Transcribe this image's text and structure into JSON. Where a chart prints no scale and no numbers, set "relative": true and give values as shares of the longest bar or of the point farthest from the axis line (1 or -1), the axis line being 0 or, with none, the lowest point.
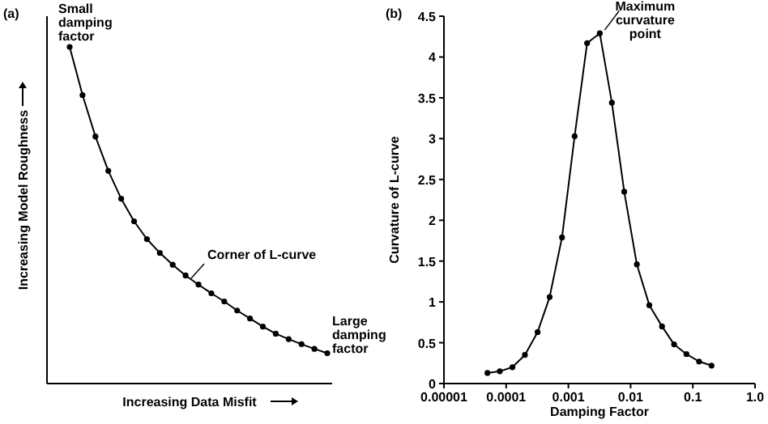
{
  "chart_data": [
    {
      "type": "line",
      "title": "(a)",
      "xlabel": "Increasing Data Misfit",
      "ylabel": "Increasing Model Roughness",
      "relative": true,
      "marker": "circle",
      "line_style": "solid",
      "grid": false,
      "categories": [
        null,
        null,
        null,
        null,
        null,
        null,
        null,
        null,
        null,
        null,
        null,
        null,
        null,
        null,
        null,
        null,
        null,
        null,
        null,
        null,
        null
      ],
      "series": [
        {
          "color": "#000000",
          "values": [
            1,
            0.857,
            0.734,
            0.632,
            0.549,
            0.482,
            0.429,
            0.388,
            0.353,
            0.321,
            0.294,
            0.268,
            0.244,
            0.217,
            0.193,
            0.169,
            0.148,
            0.132,
            0.117,
            0.103,
            0.09
          ]
        }
      ],
      "annotations": [
        "Small\ndamping\nfactor",
        "Corner of L-curve",
        "Large\ndamping\nfactor"
      ]
    },
    {
      "type": "line",
      "title": "(b)",
      "xlabel": "Damping Factor",
      "ylabel": "Curvature of L-curve",
      "log": "x",
      "marker": "circle",
      "line_style": "solid",
      "grid": false,
      "xlim": [
        1e-05,
        1
      ],
      "xticks": [
        {
          "value": 1e-05,
          "label": "0.00001"
        },
        0.0001,
        0.001,
        0.01,
        0.1,
        {
          "value": 1,
          "label": "1.0"
        }
      ],
      "ylim": [
        0,
        4.5
      ],
      "yticks": [
        0,
        0.5,
        1,
        1.5,
        2,
        2.5,
        3,
        3.5,
        4,
        4.5
      ],
      "x": [
        5e-05,
        7.9e-05,
        0.000126,
        0.0002,
        0.00032,
        0.0005,
        0.00079,
        0.00126,
        0.002,
        0.0032,
        0.005,
        0.0079,
        0.0126,
        0.02,
        0.032,
        0.05,
        0.079,
        0.126,
        0.2
      ],
      "series": [
        {
          "color": "#000000",
          "values": [
            0.13,
            0.15,
            0.2,
            0.35,
            0.63,
            1.06,
            1.79,
            3.03,
            4.17,
            4.29,
            3.44,
            2.35,
            1.46,
            0.96,
            0.7,
            0.48,
            0.36,
            0.27,
            0.22
          ]
        }
      ],
      "annotations": [
        {
          "text": "Maximum\ncurvature\npoint",
          "x": 0.0032,
          "y": 4.29
        }
      ]
    }
  ]
}
